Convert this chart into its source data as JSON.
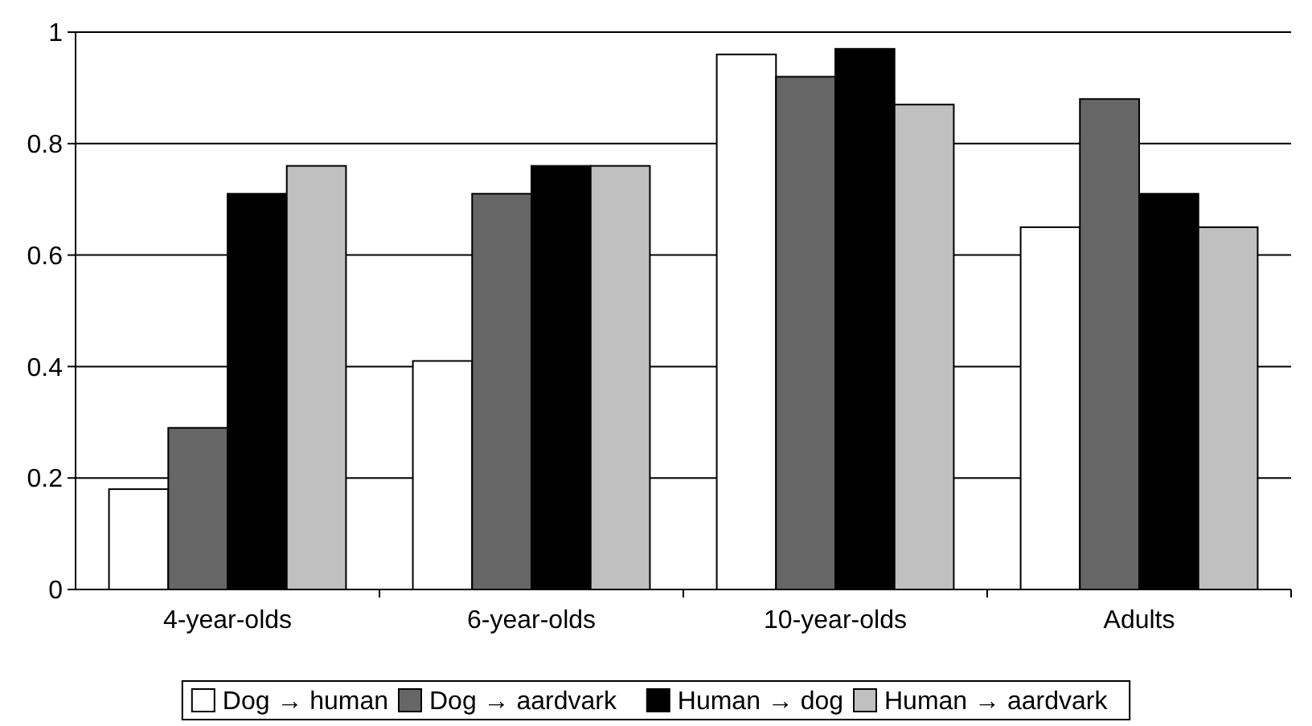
{
  "chart_data": {
    "type": "bar",
    "categories": [
      "4-year-olds",
      "6-year-olds",
      "10-year-olds",
      "Adults"
    ],
    "series": [
      {
        "name": "Dog → human",
        "color": "#ffffff",
        "values": [
          0.18,
          0.41,
          0.96,
          0.65
        ]
      },
      {
        "name": "Dog → aardvark",
        "color": "#666666",
        "values": [
          0.29,
          0.71,
          0.92,
          0.88
        ]
      },
      {
        "name": "Human → dog",
        "color": "#000000",
        "values": [
          0.71,
          0.76,
          0.97,
          0.71
        ]
      },
      {
        "name": "Human → aardvark",
        "color": "#c0c0c0",
        "values": [
          0.76,
          0.76,
          0.87,
          0.65
        ]
      }
    ],
    "ylim": [
      0,
      1
    ],
    "yticks": [
      0,
      0.2,
      0.4,
      0.6,
      0.8,
      1
    ],
    "grid": "y",
    "legend": "bottom"
  }
}
